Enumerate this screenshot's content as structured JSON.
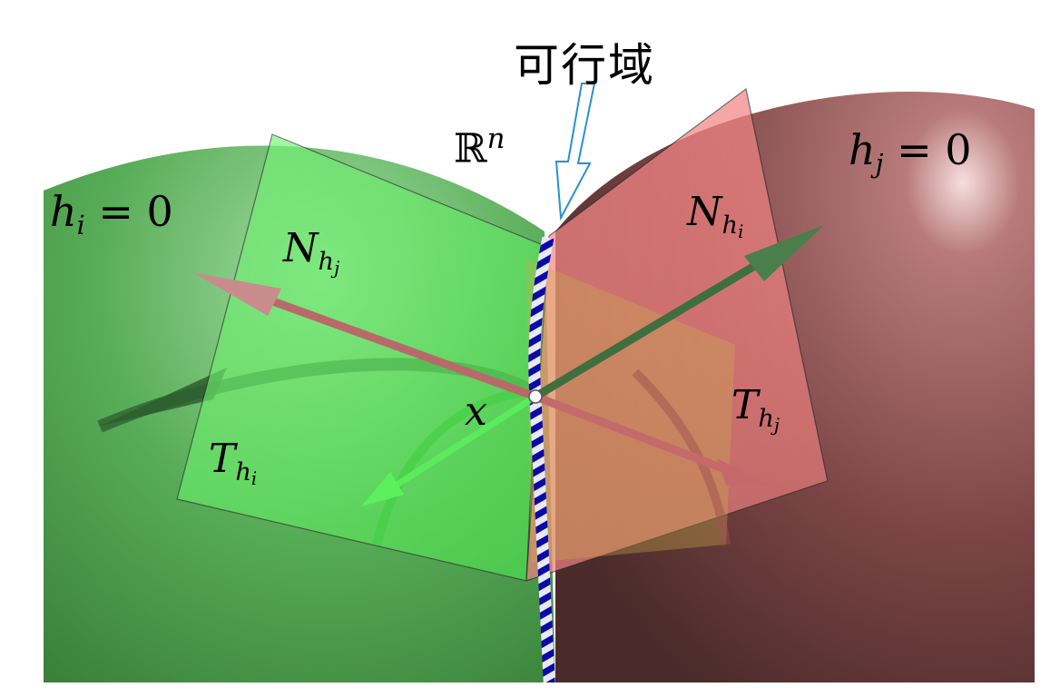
{
  "labels": {
    "feasible_region": "可行域",
    "space": {
      "base": "ℝ",
      "sup": "n"
    },
    "hi_surface": {
      "var": "h",
      "sub": "i",
      "rest": " = 0"
    },
    "hj_surface": {
      "var": "h",
      "sub": "j",
      "rest": " = 0"
    },
    "normal_hj": {
      "var": "N",
      "sub": "h",
      "subsub": "j"
    },
    "normal_hi": {
      "var": "N",
      "sub": "h",
      "subsub": "i"
    },
    "tangent_hi": {
      "var": "T",
      "sub": "h",
      "subsub": "i"
    },
    "tangent_hj": {
      "var": "T",
      "sub": "h",
      "subsub": "j"
    },
    "point": "x"
  },
  "colors": {
    "green_surface": "#3f9a3f",
    "green_plane": "#6fff6f",
    "red_surface": "#8a4a4a",
    "red_plane": "#ff8080",
    "normal_arrow_pink": "#b86a6a",
    "normal_arrow_green": "#3f6e3f",
    "feasible_line_blue": "#0a0aa8",
    "feasible_arrow_outline": "#2a8fd0"
  }
}
